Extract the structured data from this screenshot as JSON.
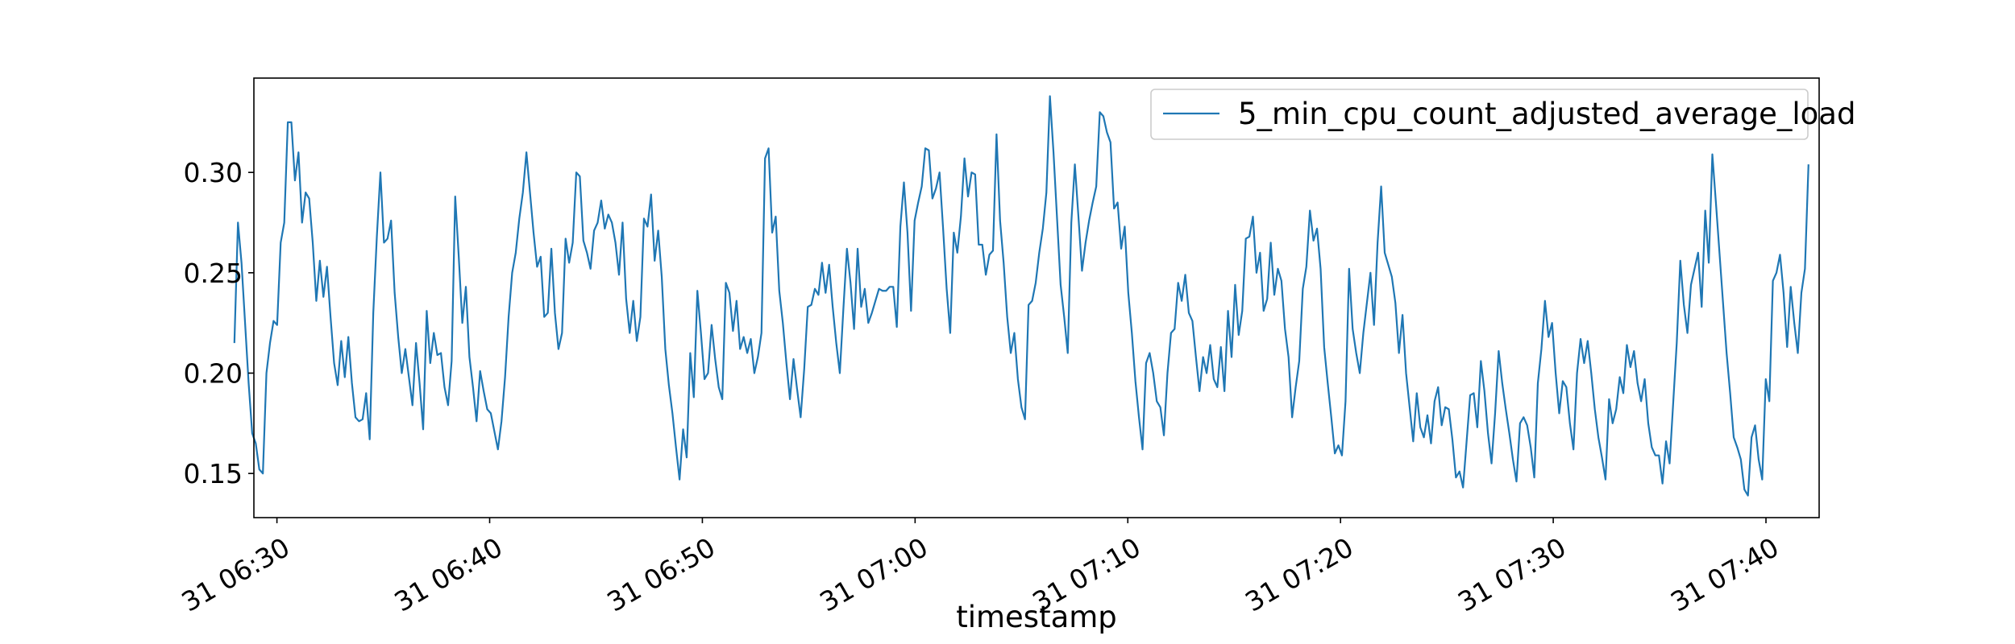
{
  "chart_data": {
    "type": "line",
    "title": "",
    "xlabel": "timestamp",
    "ylabel": "",
    "x_start": "31 06:28",
    "x_end": "31 07:42",
    "xlim": [
      "31 06:28:55",
      "31 07:42:30"
    ],
    "ylim": [
      0.128,
      0.347
    ],
    "x_ticks": [
      {
        "label": "31 06:30",
        "minute": 30
      },
      {
        "label": "31 06:40",
        "minute": 40
      },
      {
        "label": "31 06:50",
        "minute": 50
      },
      {
        "label": "31 07:00",
        "minute": 60
      },
      {
        "label": "31 07:10",
        "minute": 70
      },
      {
        "label": "31 07:20",
        "minute": 80
      },
      {
        "label": "31 07:30",
        "minute": 90
      },
      {
        "label": "31 07:40",
        "minute": 100
      }
    ],
    "y_ticks": [
      {
        "label": "0.15",
        "value": 0.15
      },
      {
        "label": "0.20",
        "value": 0.2
      },
      {
        "label": "0.25",
        "value": 0.25
      },
      {
        "label": "0.30",
        "value": 0.3
      }
    ],
    "grid": false,
    "legend_position": "top-right",
    "series": [
      {
        "name": "5_min_cpu_count_adjusted_average_load",
        "color": "#1f77b4",
        "values": [
          0.215,
          0.275,
          0.255,
          0.225,
          0.195,
          0.17,
          0.165,
          0.152,
          0.15,
          0.2,
          0.215,
          0.226,
          0.224,
          0.265,
          0.275,
          0.325,
          0.325,
          0.296,
          0.31,
          0.275,
          0.29,
          0.287,
          0.265,
          0.236,
          0.256,
          0.238,
          0.253,
          0.228,
          0.205,
          0.194,
          0.216,
          0.198,
          0.218,
          0.195,
          0.178,
          0.176,
          0.177,
          0.19,
          0.167,
          0.23,
          0.268,
          0.3,
          0.265,
          0.267,
          0.276,
          0.24,
          0.218,
          0.2,
          0.212,
          0.198,
          0.184,
          0.215,
          0.195,
          0.172,
          0.231,
          0.205,
          0.22,
          0.209,
          0.21,
          0.193,
          0.184,
          0.206,
          0.288,
          0.258,
          0.225,
          0.243,
          0.208,
          0.193,
          0.176,
          0.201,
          0.191,
          0.182,
          0.18,
          0.171,
          0.162,
          0.176,
          0.198,
          0.228,
          0.25,
          0.26,
          0.277,
          0.29,
          0.31,
          0.29,
          0.27,
          0.253,
          0.258,
          0.228,
          0.23,
          0.262,
          0.23,
          0.212,
          0.22,
          0.267,
          0.255,
          0.265,
          0.3,
          0.298,
          0.266,
          0.26,
          0.252,
          0.271,
          0.275,
          0.286,
          0.272,
          0.279,
          0.275,
          0.265,
          0.249,
          0.275,
          0.237,
          0.22,
          0.236,
          0.216,
          0.228,
          0.277,
          0.273,
          0.289,
          0.256,
          0.271,
          0.248,
          0.212,
          0.194,
          0.18,
          0.163,
          0.147,
          0.172,
          0.158,
          0.21,
          0.188,
          0.241,
          0.22,
          0.197,
          0.2,
          0.224,
          0.207,
          0.193,
          0.187,
          0.245,
          0.24,
          0.221,
          0.236,
          0.212,
          0.218,
          0.21,
          0.217,
          0.2,
          0.208,
          0.22,
          0.307,
          0.312,
          0.27,
          0.278,
          0.241,
          0.225,
          0.205,
          0.187,
          0.207,
          0.192,
          0.178,
          0.202,
          0.233,
          0.234,
          0.242,
          0.239,
          0.255,
          0.24,
          0.254,
          0.233,
          0.215,
          0.2,
          0.232,
          0.262,
          0.245,
          0.222,
          0.262,
          0.233,
          0.242,
          0.225,
          0.23,
          0.236,
          0.242,
          0.241,
          0.241,
          0.243,
          0.243,
          0.223,
          0.273,
          0.295,
          0.27,
          0.231,
          0.276,
          0.285,
          0.293,
          0.312,
          0.311,
          0.287,
          0.292,
          0.3,
          0.272,
          0.242,
          0.22,
          0.27,
          0.26,
          0.278,
          0.307,
          0.288,
          0.3,
          0.299,
          0.264,
          0.264,
          0.249,
          0.259,
          0.261,
          0.319,
          0.276,
          0.255,
          0.228,
          0.21,
          0.22,
          0.197,
          0.183,
          0.177,
          0.234,
          0.236,
          0.245,
          0.26,
          0.272,
          0.29,
          0.338,
          0.31,
          0.277,
          0.244,
          0.228,
          0.21,
          0.275,
          0.304,
          0.278,
          0.251,
          0.265,
          0.276,
          0.285,
          0.293,
          0.33,
          0.328,
          0.32,
          0.315,
          0.282,
          0.285,
          0.262,
          0.273,
          0.24,
          0.22,
          0.196,
          0.178,
          0.162,
          0.205,
          0.21,
          0.2,
          0.186,
          0.183,
          0.169,
          0.2,
          0.22,
          0.222,
          0.245,
          0.236,
          0.249,
          0.23,
          0.226,
          0.208,
          0.191,
          0.208,
          0.2,
          0.214,
          0.197,
          0.193,
          0.213,
          0.191,
          0.231,
          0.208,
          0.244,
          0.219,
          0.231,
          0.267,
          0.268,
          0.278,
          0.25,
          0.26,
          0.231,
          0.237,
          0.265,
          0.239,
          0.252,
          0.246,
          0.222,
          0.208,
          0.178,
          0.193,
          0.206,
          0.242,
          0.253,
          0.281,
          0.266,
          0.272,
          0.252,
          0.213,
          0.195,
          0.178,
          0.16,
          0.164,
          0.159,
          0.186,
          0.252,
          0.222,
          0.21,
          0.2,
          0.22,
          0.235,
          0.25,
          0.224,
          0.265,
          0.293,
          0.26,
          0.254,
          0.248,
          0.235,
          0.21,
          0.229,
          0.2,
          0.183,
          0.166,
          0.19,
          0.173,
          0.168,
          0.179,
          0.165,
          0.186,
          0.193,
          0.174,
          0.183,
          0.182,
          0.167,
          0.148,
          0.151,
          0.143,
          0.166,
          0.189,
          0.19,
          0.173,
          0.206,
          0.191,
          0.17,
          0.155,
          0.18,
          0.211,
          0.195,
          0.182,
          0.17,
          0.157,
          0.146,
          0.175,
          0.178,
          0.174,
          0.163,
          0.148,
          0.195,
          0.212,
          0.236,
          0.218,
          0.225,
          0.2,
          0.18,
          0.196,
          0.193,
          0.175,
          0.162,
          0.2,
          0.217,
          0.205,
          0.216,
          0.2,
          0.182,
          0.168,
          0.158,
          0.147,
          0.187,
          0.175,
          0.182,
          0.198,
          0.19,
          0.214,
          0.203,
          0.211,
          0.195,
          0.186,
          0.197,
          0.175,
          0.163,
          0.159,
          0.159,
          0.145,
          0.166,
          0.155,
          0.185,
          0.215,
          0.256,
          0.234,
          0.22,
          0.244,
          0.252,
          0.26,
          0.233,
          0.281,
          0.255,
          0.309,
          0.285,
          0.26,
          0.235,
          0.21,
          0.19,
          0.168,
          0.163,
          0.157,
          0.142,
          0.139,
          0.168,
          0.174,
          0.157,
          0.147,
          0.197,
          0.186,
          0.246,
          0.25,
          0.259,
          0.24,
          0.213,
          0.243,
          0.225,
          0.21,
          0.24,
          0.252,
          0.304
        ]
      }
    ]
  }
}
